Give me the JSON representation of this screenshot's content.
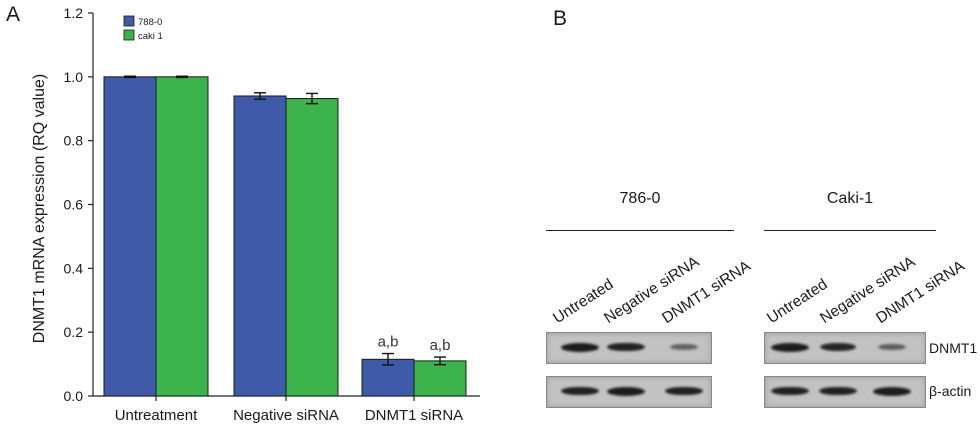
{
  "panels": {
    "a_letter": "A",
    "b_letter": "B"
  },
  "chart_data": {
    "type": "bar",
    "title": "",
    "categories": [
      "Untreatment",
      "Negative siRNA",
      "DNMT1 siRNA"
    ],
    "series": [
      {
        "name": "788-0",
        "values": [
          1.0,
          0.94,
          0.115
        ],
        "errors": [
          0.002,
          0.01,
          0.018
        ],
        "color": "#3f5aa8"
      },
      {
        "name": "caki 1",
        "values": [
          1.0,
          0.932,
          0.11
        ],
        "errors": [
          0.002,
          0.016,
          0.012
        ],
        "color": "#3cb44b"
      }
    ],
    "annotations": [
      "a,b",
      "a,b"
    ],
    "ylabel": "DNMT1 mRNA expression (RQ value)",
    "xlabel": "",
    "ylim": [
      0,
      1.2
    ],
    "yticks": [
      "0.0",
      "0.2",
      "0.4",
      "0.6",
      "0.8",
      "1.0",
      "1.2"
    ],
    "legend_position": "top-left",
    "grid": false
  },
  "blot": {
    "groups": [
      {
        "name": "786-0",
        "lanes": [
          "Untreated",
          "Negative siRNA",
          "DNMT1 siRNA"
        ],
        "dnmt1_intensity": [
          1.0,
          0.95,
          0.35
        ],
        "actin_intensity": [
          0.95,
          1.0,
          0.95
        ]
      },
      {
        "name": "Caki-1",
        "lanes": [
          "Untreated",
          "Negative siRNA",
          "DNMT1 siRNA"
        ],
        "dnmt1_intensity": [
          1.0,
          0.9,
          0.4
        ],
        "actin_intensity": [
          0.95,
          0.95,
          1.0
        ]
      }
    ],
    "rows": [
      "DNMT1",
      "β-actin"
    ]
  }
}
